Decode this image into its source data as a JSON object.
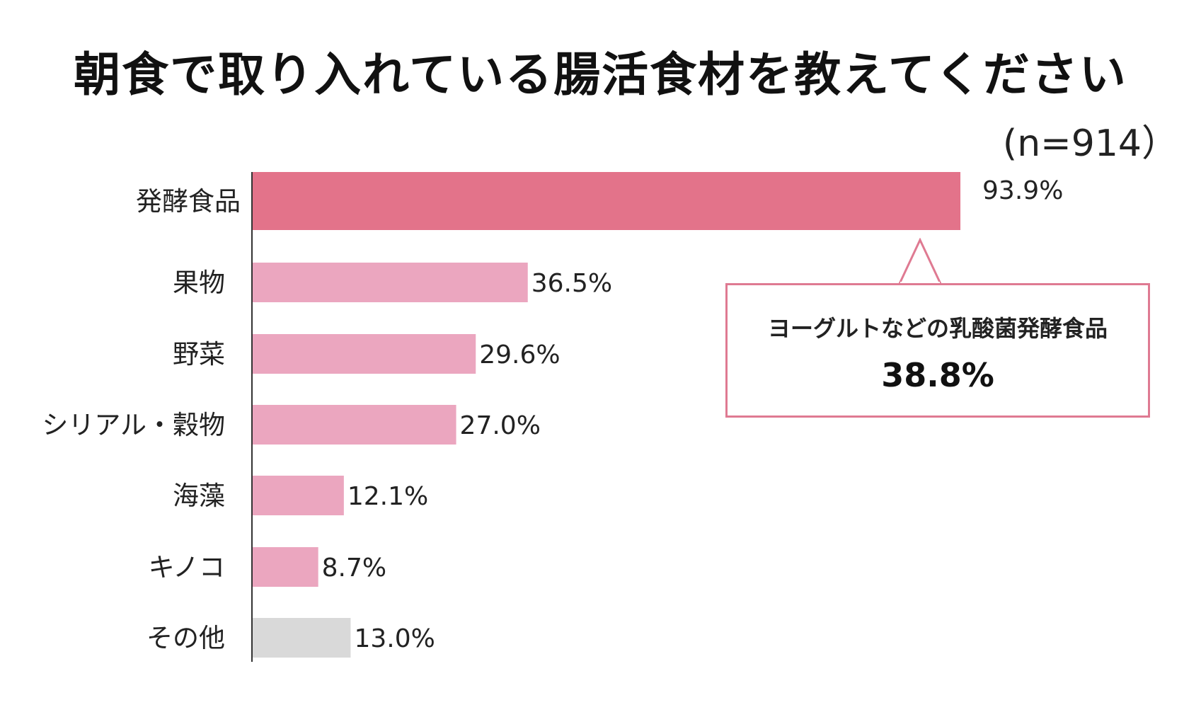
{
  "title": "朝食で取り入れている腸活食材を教えてください",
  "sample_size": "(n=914）",
  "chart_data": {
    "type": "bar",
    "orientation": "horizontal",
    "categories": [
      "発酵食品",
      "果物",
      "野菜",
      "シリアル・穀物",
      "海藻",
      "キノコ",
      "その他"
    ],
    "values": [
      93.9,
      36.5,
      29.6,
      27.0,
      12.1,
      8.7,
      13.0
    ],
    "value_labels": [
      "93.9%",
      "36.5%",
      "29.6%",
      "27.0%",
      "12.1%",
      "8.7%",
      "13.0%"
    ],
    "unit": "%",
    "xlim": [
      0,
      100
    ],
    "grid": false,
    "colors": [
      "#e3738a",
      "#eba6bf",
      "#eba6bf",
      "#eba6bf",
      "#eba6bf",
      "#eba6bf",
      "#d9d9d9"
    ]
  },
  "callout": {
    "text": "ヨーグルトなどの乳酸菌発酵食品",
    "value": "38.8%",
    "border_color": "#df7a92"
  }
}
